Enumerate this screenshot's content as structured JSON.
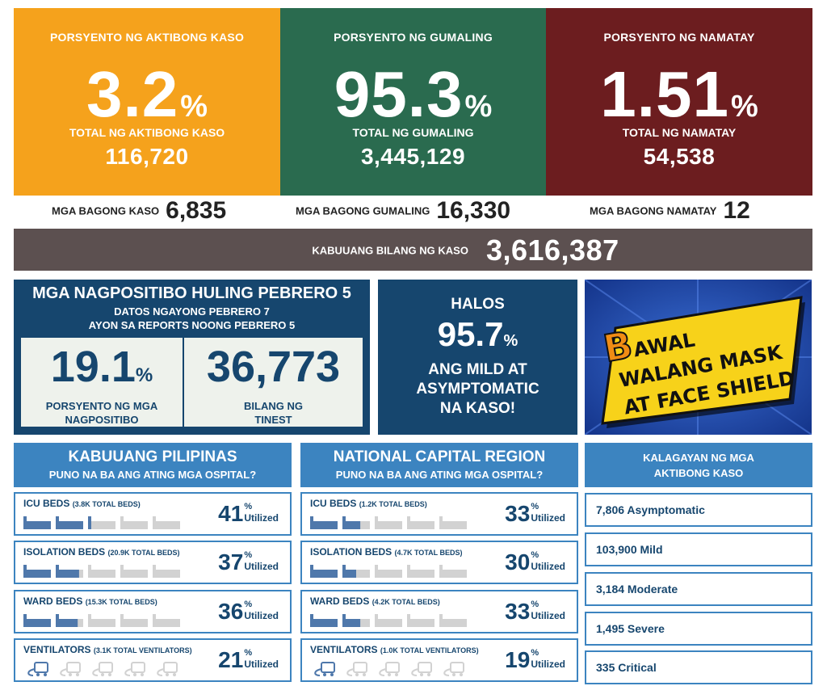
{
  "top_cards": [
    {
      "label": "PORSYENTO NG AKTIBONG KASO",
      "value": "3.2",
      "unit": "%",
      "total_label": "TOTAL NG AKTIBONG KASO",
      "total": "116,720",
      "color": "#f5a21c"
    },
    {
      "label": "PORSYENTO NG GUMALING",
      "value": "95.3",
      "unit": "%",
      "total_label": "TOTAL NG GUMALING",
      "total": "3,445,129",
      "color": "#2a6b4f"
    },
    {
      "label": "PORSYENTO NG NAMATAY",
      "value": "1.51",
      "unit": "%",
      "total_label": "TOTAL NG NAMATAY",
      "total": "54,538",
      "color": "#6c1d1f"
    }
  ],
  "new_counts": [
    {
      "label": "MGA BAGONG KASO",
      "value": "6,835"
    },
    {
      "label": "MGA BAGONG GUMALING",
      "value": "16,330"
    },
    {
      "label": "MGA BAGONG NAMATAY",
      "value": "12"
    }
  ],
  "total_cases": {
    "label": "KABUUANG BILANG NG KASO",
    "value": "3,616,387"
  },
  "positivity": {
    "title": "MGA NAGPOSITIBO HULING PEBRERO 5",
    "subtitle1": "DATOS NGAYONG PEBRERO 7",
    "subtitle2": "AYON SA REPORTS NOONG PEBRERO 5",
    "rate_value": "19.1",
    "rate_unit": "%",
    "rate_label1": "PORSYENTO NG MGA",
    "rate_label2": "NAGPOSITIBO",
    "tested_value": "36,773",
    "tested_label1": "BILANG NG",
    "tested_label2": "TINEST"
  },
  "mild": {
    "line1": "HALOS",
    "value": "95.7",
    "unit": "%",
    "line2": "ANG MILD AT",
    "line3": "ASYMPTOMATIC",
    "line4": "NA KASO!"
  },
  "banner": {
    "initial": "B",
    "line1": "AWAL",
    "line2": "WALANG MASK",
    "line3": "AT FACE SHIELD"
  },
  "hospitals": [
    {
      "title": "KABUUANG PILIPINAS",
      "subtitle": "PUNO NA BA ANG ATING MGA OSPITAL?",
      "rows": [
        {
          "label": "ICU BEDS",
          "sub": "(3.8K TOTAL BEDS)",
          "value": "41",
          "fraction": 0.41,
          "kind": "bed"
        },
        {
          "label": "ISOLATION BEDS",
          "sub": "(20.9K TOTAL BEDS)",
          "value": "37",
          "fraction": 0.37,
          "kind": "bed"
        },
        {
          "label": "WARD BEDS",
          "sub": "(15.3K TOTAL BEDS)",
          "value": "36",
          "fraction": 0.36,
          "kind": "bed"
        },
        {
          "label": "VENTILATORS",
          "sub": "(3.1K TOTAL VENTILATORS)",
          "value": "21",
          "fraction": 0.21,
          "kind": "vent"
        }
      ]
    },
    {
      "title": "NATIONAL CAPITAL REGION",
      "subtitle": "PUNO NA BA ANG ATING MGA OSPITAL?",
      "rows": [
        {
          "label": "ICU BEDS",
          "sub": "(1.2K TOTAL BEDS)",
          "value": "33",
          "fraction": 0.33,
          "kind": "bed"
        },
        {
          "label": "ISOLATION BEDS",
          "sub": "(4.7K TOTAL BEDS)",
          "value": "30",
          "fraction": 0.3,
          "kind": "bed"
        },
        {
          "label": "WARD BEDS",
          "sub": "(4.2K TOTAL BEDS)",
          "value": "33",
          "fraction": 0.33,
          "kind": "bed"
        },
        {
          "label": "VENTILATORS",
          "sub": "(1.0K TOTAL VENTILATORS)",
          "value": "19",
          "fraction": 0.19,
          "kind": "vent"
        }
      ]
    }
  ],
  "pct_symbol": "%",
  "utilized_label": "Utilized",
  "status": {
    "title1": "KALAGAYAN NG MGA",
    "title2": "AKTIBONG KASO",
    "items": [
      "7,806 Asymptomatic",
      "103,900 Mild",
      "3,184 Moderate",
      "1,495 Severe",
      "335 Critical"
    ]
  },
  "colors": {
    "navy": "#16466e",
    "blue": "#3c84c0",
    "bar_filled": "#4f78ab",
    "bar_empty": "#d2d2d2",
    "banner_yellow": "#f7d21a",
    "banner_orange": "#f08c14"
  }
}
